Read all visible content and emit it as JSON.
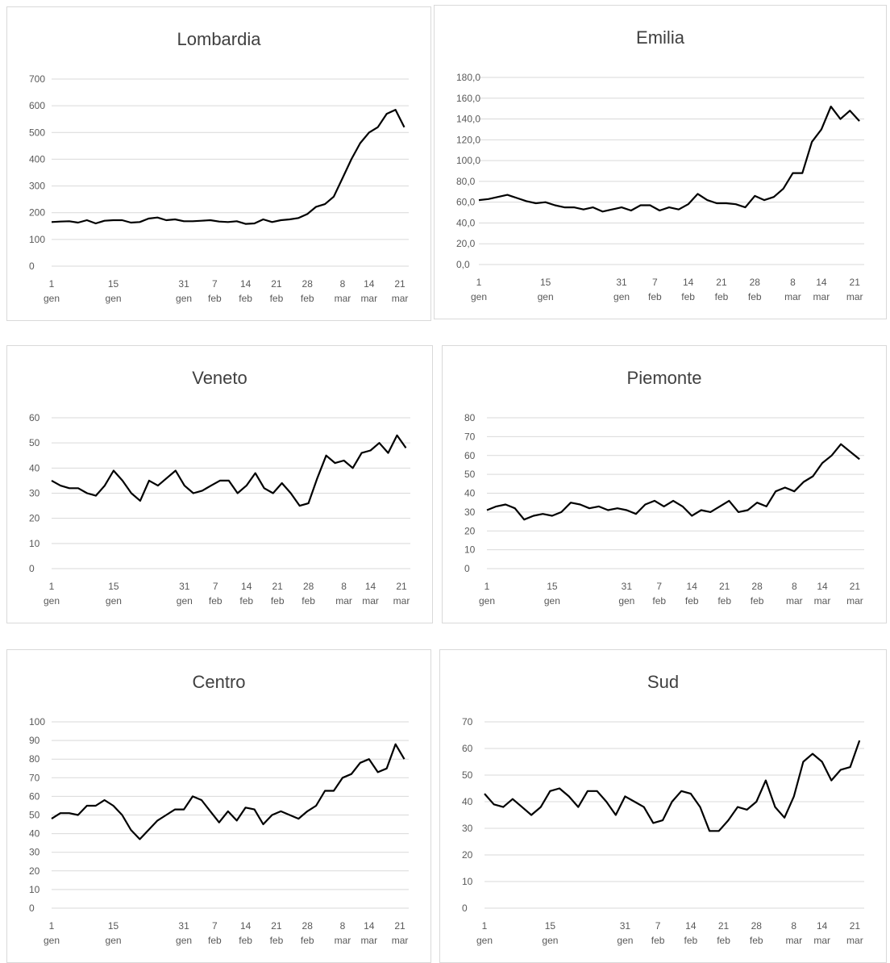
{
  "chart_data": [
    {
      "type": "line",
      "title": "Lombardia",
      "color": "#000000",
      "ylim": [
        0,
        700
      ],
      "yticks": [
        0,
        100,
        200,
        300,
        400,
        500,
        600,
        700
      ],
      "xlim": [
        1,
        82
      ],
      "xticks": [
        {
          "value": 1,
          "label": [
            "1",
            "gen"
          ]
        },
        {
          "value": 15,
          "label": [
            "15",
            "gen"
          ]
        },
        {
          "value": 31,
          "label": [
            "31",
            "gen"
          ]
        },
        {
          "value": 38,
          "label": [
            "7",
            "feb"
          ]
        },
        {
          "value": 45,
          "label": [
            "14",
            "feb"
          ]
        },
        {
          "value": 52,
          "label": [
            "21",
            "feb"
          ]
        },
        {
          "value": 59,
          "label": [
            "28",
            "feb"
          ]
        },
        {
          "value": 67,
          "label": [
            "8",
            "mar"
          ]
        },
        {
          "value": 73,
          "label": [
            "14",
            "mar"
          ]
        },
        {
          "value": 80,
          "label": [
            "21",
            "mar"
          ]
        }
      ],
      "x": [
        1,
        3,
        5,
        7,
        9,
        11,
        13,
        15,
        17,
        19,
        21,
        23,
        25,
        27,
        29,
        31,
        33,
        35,
        37,
        39,
        41,
        43,
        45,
        47,
        49,
        51,
        53,
        55,
        57,
        59,
        61,
        63,
        65,
        67,
        69,
        71,
        73,
        75,
        77,
        79,
        81
      ],
      "values": [
        165,
        167,
        168,
        163,
        172,
        160,
        170,
        172,
        172,
        163,
        165,
        178,
        182,
        172,
        175,
        168,
        168,
        170,
        172,
        167,
        165,
        168,
        158,
        160,
        175,
        165,
        172,
        175,
        180,
        195,
        222,
        232,
        260,
        330,
        400,
        460,
        500,
        520,
        570,
        585,
        520
      ]
    },
    {
      "type": "line",
      "title": "Emilia",
      "color": "#000000",
      "ylim": [
        0,
        180
      ],
      "yticks": [
        {
          "value": 0,
          "label": "0,0"
        },
        {
          "value": 20,
          "label": "20,0"
        },
        {
          "value": 40,
          "label": "40,0"
        },
        {
          "value": 60,
          "label": "60,0"
        },
        {
          "value": 80,
          "label": "80,0"
        },
        {
          "value": 100,
          "label": "100,0"
        },
        {
          "value": 120,
          "label": "120,0"
        },
        {
          "value": 140,
          "label": "140,0"
        },
        {
          "value": 160,
          "label": "160,0"
        },
        {
          "value": 180,
          "label": "180,0"
        }
      ],
      "xlim": [
        1,
        82
      ],
      "xticks": [
        {
          "value": 1,
          "label": [
            "1",
            "gen"
          ]
        },
        {
          "value": 15,
          "label": [
            "15",
            "gen"
          ]
        },
        {
          "value": 31,
          "label": [
            "31",
            "gen"
          ]
        },
        {
          "value": 38,
          "label": [
            "7",
            "feb"
          ]
        },
        {
          "value": 45,
          "label": [
            "14",
            "feb"
          ]
        },
        {
          "value": 52,
          "label": [
            "21",
            "feb"
          ]
        },
        {
          "value": 59,
          "label": [
            "28",
            "feb"
          ]
        },
        {
          "value": 67,
          "label": [
            "8",
            "mar"
          ]
        },
        {
          "value": 73,
          "label": [
            "14",
            "mar"
          ]
        },
        {
          "value": 80,
          "label": [
            "21",
            "mar"
          ]
        }
      ],
      "x": [
        1,
        3,
        5,
        7,
        9,
        11,
        13,
        15,
        17,
        19,
        21,
        23,
        25,
        27,
        29,
        31,
        33,
        35,
        37,
        39,
        41,
        43,
        45,
        47,
        49,
        51,
        53,
        55,
        57,
        59,
        61,
        63,
        65,
        67,
        69,
        71,
        73,
        75,
        77,
        79,
        81
      ],
      "values": [
        62,
        63,
        65,
        67,
        64,
        61,
        59,
        60,
        57,
        55,
        55,
        53,
        55,
        51,
        53,
        55,
        52,
        57,
        57,
        52,
        55,
        53,
        58,
        68,
        62,
        59,
        59,
        58,
        55,
        66,
        62,
        65,
        73,
        88,
        88,
        118,
        130,
        152,
        140,
        148,
        138
      ]
    },
    {
      "type": "line",
      "title": "Veneto",
      "color": "#000000",
      "ylim": [
        0,
        60
      ],
      "yticks": [
        0,
        10,
        20,
        30,
        40,
        50,
        60
      ],
      "xlim": [
        1,
        82
      ],
      "xticks": [
        {
          "value": 1,
          "label": [
            "1",
            "gen"
          ]
        },
        {
          "value": 15,
          "label": [
            "15",
            "gen"
          ]
        },
        {
          "value": 31,
          "label": [
            "31",
            "gen"
          ]
        },
        {
          "value": 38,
          "label": [
            "7",
            "feb"
          ]
        },
        {
          "value": 45,
          "label": [
            "14",
            "feb"
          ]
        },
        {
          "value": 52,
          "label": [
            "21",
            "feb"
          ]
        },
        {
          "value": 59,
          "label": [
            "28",
            "feb"
          ]
        },
        {
          "value": 67,
          "label": [
            "8",
            "mar"
          ]
        },
        {
          "value": 73,
          "label": [
            "14",
            "mar"
          ]
        },
        {
          "value": 80,
          "label": [
            "21",
            "mar"
          ]
        }
      ],
      "x": [
        1,
        3,
        5,
        7,
        9,
        11,
        13,
        15,
        17,
        19,
        21,
        23,
        25,
        27,
        29,
        31,
        33,
        35,
        37,
        39,
        41,
        43,
        45,
        47,
        49,
        51,
        53,
        55,
        57,
        59,
        61,
        63,
        65,
        67,
        69,
        71,
        73,
        75,
        77,
        79,
        81
      ],
      "values": [
        35,
        33,
        32,
        32,
        30,
        29,
        33,
        39,
        35,
        30,
        27,
        35,
        33,
        36,
        39,
        33,
        30,
        31,
        33,
        35,
        35,
        30,
        33,
        38,
        32,
        30,
        34,
        30,
        25,
        26,
        36,
        45,
        42,
        43,
        40,
        46,
        47,
        50,
        46,
        53,
        48
      ]
    },
    {
      "type": "line",
      "title": "Piemonte",
      "color": "#000000",
      "ylim": [
        0,
        80
      ],
      "yticks": [
        0,
        10,
        20,
        30,
        40,
        50,
        60,
        70,
        80
      ],
      "xlim": [
        1,
        82
      ],
      "xticks": [
        {
          "value": 1,
          "label": [
            "1",
            "gen"
          ]
        },
        {
          "value": 15,
          "label": [
            "15",
            "gen"
          ]
        },
        {
          "value": 31,
          "label": [
            "31",
            "gen"
          ]
        },
        {
          "value": 38,
          "label": [
            "7",
            "feb"
          ]
        },
        {
          "value": 45,
          "label": [
            "14",
            "feb"
          ]
        },
        {
          "value": 52,
          "label": [
            "21",
            "feb"
          ]
        },
        {
          "value": 59,
          "label": [
            "28",
            "feb"
          ]
        },
        {
          "value": 67,
          "label": [
            "8",
            "mar"
          ]
        },
        {
          "value": 73,
          "label": [
            "14",
            "mar"
          ]
        },
        {
          "value": 80,
          "label": [
            "21",
            "mar"
          ]
        }
      ],
      "x": [
        1,
        3,
        5,
        7,
        9,
        11,
        13,
        15,
        17,
        19,
        21,
        23,
        25,
        27,
        29,
        31,
        33,
        35,
        37,
        39,
        41,
        43,
        45,
        47,
        49,
        51,
        53,
        55,
        57,
        59,
        61,
        63,
        65,
        67,
        69,
        71,
        73,
        75,
        77,
        79,
        81
      ],
      "values": [
        31,
        33,
        34,
        32,
        26,
        28,
        29,
        28,
        30,
        35,
        34,
        32,
        33,
        31,
        32,
        31,
        29,
        34,
        36,
        33,
        36,
        33,
        28,
        31,
        30,
        33,
        36,
        30,
        31,
        35,
        33,
        41,
        43,
        41,
        46,
        49,
        56,
        60,
        66,
        62,
        58
      ]
    },
    {
      "type": "line",
      "title": "Centro",
      "color": "#000000",
      "ylim": [
        0,
        100
      ],
      "yticks": [
        0,
        10,
        20,
        30,
        40,
        50,
        60,
        70,
        80,
        90,
        100
      ],
      "xlim": [
        1,
        82
      ],
      "xticks": [
        {
          "value": 1,
          "label": [
            "1",
            "gen"
          ]
        },
        {
          "value": 15,
          "label": [
            "15",
            "gen"
          ]
        },
        {
          "value": 31,
          "label": [
            "31",
            "gen"
          ]
        },
        {
          "value": 38,
          "label": [
            "7",
            "feb"
          ]
        },
        {
          "value": 45,
          "label": [
            "14",
            "feb"
          ]
        },
        {
          "value": 52,
          "label": [
            "21",
            "feb"
          ]
        },
        {
          "value": 59,
          "label": [
            "28",
            "feb"
          ]
        },
        {
          "value": 67,
          "label": [
            "8",
            "mar"
          ]
        },
        {
          "value": 73,
          "label": [
            "14",
            "mar"
          ]
        },
        {
          "value": 80,
          "label": [
            "21",
            "mar"
          ]
        }
      ],
      "x": [
        1,
        3,
        5,
        7,
        9,
        11,
        13,
        15,
        17,
        19,
        21,
        23,
        25,
        27,
        29,
        31,
        33,
        35,
        37,
        39,
        41,
        43,
        45,
        47,
        49,
        51,
        53,
        55,
        57,
        59,
        61,
        63,
        65,
        67,
        69,
        71,
        73,
        75,
        77,
        79,
        81
      ],
      "values": [
        48,
        51,
        51,
        50,
        55,
        55,
        58,
        55,
        50,
        42,
        37,
        42,
        47,
        50,
        53,
        53,
        60,
        58,
        52,
        46,
        52,
        47,
        54,
        53,
        45,
        50,
        52,
        50,
        48,
        52,
        55,
        63,
        63,
        70,
        72,
        78,
        80,
        73,
        75,
        88,
        80
      ]
    },
    {
      "type": "line",
      "title": "Sud",
      "color": "#000000",
      "ylim": [
        0,
        70
      ],
      "yticks": [
        0,
        10,
        20,
        30,
        40,
        50,
        60,
        70
      ],
      "xlim": [
        1,
        82
      ],
      "xticks": [
        {
          "value": 1,
          "label": [
            "1",
            "gen"
          ]
        },
        {
          "value": 15,
          "label": [
            "15",
            "gen"
          ]
        },
        {
          "value": 31,
          "label": [
            "31",
            "gen"
          ]
        },
        {
          "value": 38,
          "label": [
            "7",
            "feb"
          ]
        },
        {
          "value": 45,
          "label": [
            "14",
            "feb"
          ]
        },
        {
          "value": 52,
          "label": [
            "21",
            "feb"
          ]
        },
        {
          "value": 59,
          "label": [
            "28",
            "feb"
          ]
        },
        {
          "value": 67,
          "label": [
            "8",
            "mar"
          ]
        },
        {
          "value": 73,
          "label": [
            "14",
            "mar"
          ]
        },
        {
          "value": 80,
          "label": [
            "21",
            "mar"
          ]
        }
      ],
      "x": [
        1,
        3,
        5,
        7,
        9,
        11,
        13,
        15,
        17,
        19,
        21,
        23,
        25,
        27,
        29,
        31,
        33,
        35,
        37,
        39,
        41,
        43,
        45,
        47,
        49,
        51,
        53,
        55,
        57,
        59,
        61,
        63,
        65,
        67,
        69,
        71,
        73,
        75,
        77,
        79,
        81
      ],
      "values": [
        43,
        39,
        38,
        41,
        38,
        35,
        38,
        44,
        45,
        42,
        38,
        44,
        44,
        40,
        35,
        42,
        40,
        38,
        32,
        33,
        40,
        44,
        43,
        38,
        29,
        29,
        33,
        38,
        37,
        40,
        48,
        38,
        34,
        42,
        55,
        58,
        55,
        48,
        52,
        53,
        63
      ]
    }
  ]
}
